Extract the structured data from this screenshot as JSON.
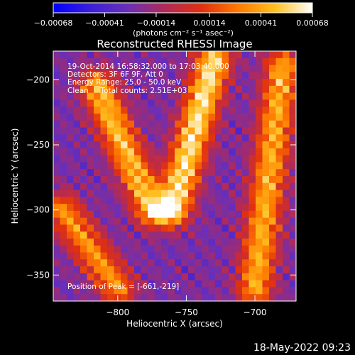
{
  "chart_data": {
    "type": "heatmap",
    "title": "Reconstructed RHESSI Image",
    "xlabel": "Heliocentric X (arcsec)",
    "ylabel": "Heliocentric Y (arcsec)",
    "xlim": [
      -847,
      -670
    ],
    "ylim": [
      -370,
      -178
    ],
    "x_ticks": [
      -800,
      -750,
      -700
    ],
    "y_ticks": [
      -350,
      -300,
      -250,
      -200
    ],
    "x_tick_labels": [
      "−800",
      "−750",
      "−700"
    ],
    "y_tick_labels": [
      "−350",
      "−300",
      "−250",
      "−200"
    ],
    "colorbar": {
      "range": [
        -0.00068,
        0.00068
      ],
      "ticks": [
        -0.00068,
        -0.00041,
        -0.00014,
        0.00014,
        0.00041,
        0.00068
      ],
      "tick_labels": [
        "−0.00068",
        "−0.00041",
        "−0.00014",
        "0.00014",
        "0.00041",
        "0.00068"
      ],
      "units": "(photons cm⁻² s⁻¹ asec⁻²)",
      "colors": [
        "#0000ff",
        "#3a1fd9",
        "#6a2fb8",
        "#b02a5a",
        "#e03010",
        "#ff7a00",
        "#ffc020",
        "#ffffff"
      ]
    },
    "annotations": [
      "19-Oct-2014 16:58:32.000 to 17:03:40.000",
      "Detectors: 3F 6F 9F, Att 0",
      "Energy Range: 25.0 - 50.0 keV",
      "Clean     Total counts: 2.51E+03"
    ],
    "peak_label": "Position of Peak = [-661,-219]",
    "peak": [
      -661,
      -219
    ],
    "grid": false,
    "sources": [
      {
        "x0": -815,
        "y0": -205,
        "x1": -775,
        "y1": -300,
        "strength": 0.85
      },
      {
        "x0": -730,
        "y0": -185,
        "x1": -760,
        "y1": -300,
        "strength": 1.0
      },
      {
        "x0": -680,
        "y0": -190,
        "x1": -700,
        "y1": -360,
        "strength": 0.8
      },
      {
        "x0": -840,
        "y0": -300,
        "x1": -800,
        "y1": -360,
        "strength": 0.7
      }
    ]
  },
  "footer": {
    "timestamp": "18-May-2022 09:23"
  }
}
